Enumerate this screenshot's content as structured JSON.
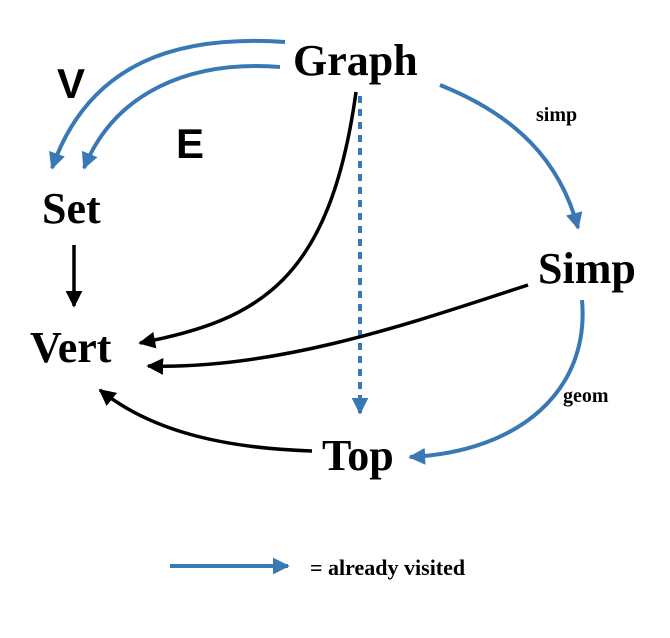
{
  "nodes": {
    "graph": "Graph",
    "set": "Set",
    "vert": "Vert",
    "simp": "Simp",
    "top": "Top"
  },
  "edge_labels": {
    "v": "V",
    "e": "E",
    "simp": "simp",
    "geom": "geom"
  },
  "legend": {
    "text": "= already visited"
  },
  "colors": {
    "visited": "#3a78b5",
    "default": "#000000"
  }
}
